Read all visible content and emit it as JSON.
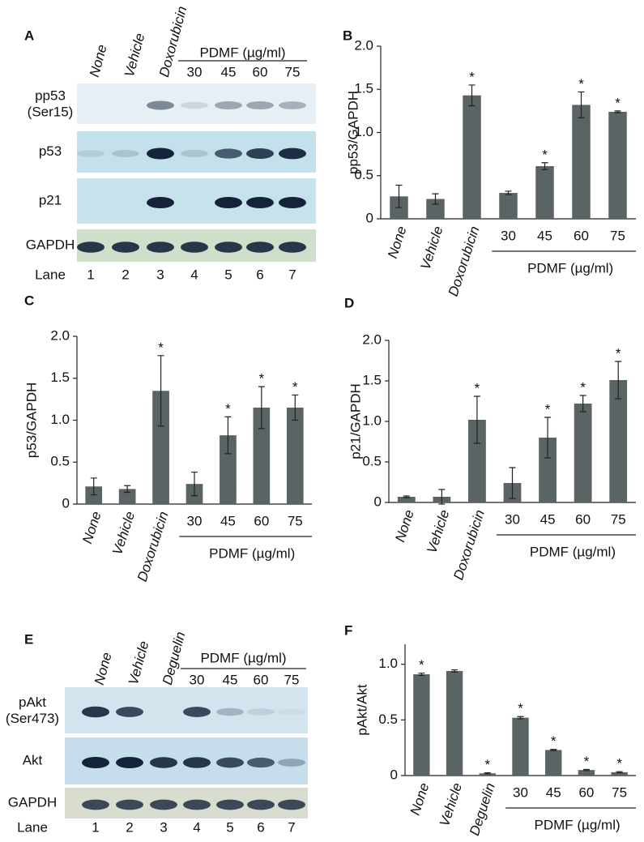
{
  "blots": [
    {
      "panel": "A",
      "treatments": [
        "None",
        "Vehicle",
        "Doxorubicin"
      ],
      "group": "PDMF (µg/ml)",
      "doses": [
        "30",
        "45",
        "60",
        "75"
      ],
      "rows": [
        {
          "name": "pp53",
          "site": "(Ser15)"
        },
        {
          "name": "p53"
        },
        {
          "name": "p21"
        },
        {
          "name": "GAPDH"
        }
      ],
      "lane_title": "Lane",
      "lanes": [
        1,
        2,
        3,
        4,
        5,
        6,
        7
      ]
    },
    {
      "panel": "E",
      "treatments": [
        "None",
        "Vehicle",
        "Deguelin"
      ],
      "group": "PDMF (µg/ml)",
      "doses": [
        "30",
        "45",
        "60",
        "75"
      ],
      "rows": [
        {
          "name": "pAkt",
          "site": "(Ser473)"
        },
        {
          "name": "Akt"
        },
        {
          "name": "GAPDH"
        }
      ],
      "lane_title": "Lane",
      "lanes": [
        1,
        2,
        3,
        4,
        5,
        6,
        7
      ]
    }
  ],
  "chart_data": [
    {
      "type": "bar",
      "panel": "B",
      "y_label": "pp53/GAPDH",
      "color": "#5b6464",
      "categories": [
        "None",
        "Vehicle",
        "Doxorubicin",
        "30",
        "45",
        "60",
        "75"
      ],
      "category_group": "PDMF (µg/ml)",
      "values": [
        0.26,
        0.23,
        1.43,
        0.3,
        0.61,
        1.32,
        1.24
      ],
      "errors": [
        0.13,
        0.06,
        0.12,
        0.02,
        0.04,
        0.15,
        0.01
      ],
      "annotations": [
        null,
        null,
        "*",
        null,
        "*",
        "*",
        "*"
      ],
      "ylim": [
        0,
        2
      ],
      "yticks": [
        0,
        0.5,
        {
          "value": 1,
          "label": "1.0"
        },
        1.5,
        {
          "value": 2,
          "label": "2.0"
        }
      ]
    },
    {
      "type": "bar",
      "panel": "C",
      "y_label": "p53/GAPDH",
      "color": "#5b6464",
      "categories": [
        "None",
        "Vehicle",
        "Doxorubicin",
        "30",
        "45",
        "60",
        "75"
      ],
      "category_group": "PDMF (µg/ml)",
      "values": [
        0.21,
        0.18,
        1.35,
        0.24,
        0.82,
        1.15,
        1.15
      ],
      "errors": [
        0.1,
        0.04,
        0.42,
        0.14,
        0.22,
        0.25,
        0.15
      ],
      "annotations": [
        null,
        null,
        "*",
        null,
        "*",
        "*",
        "*"
      ],
      "ylim": [
        0,
        2
      ],
      "yticks": [
        0,
        0.5,
        {
          "value": 1,
          "label": "1.0"
        },
        1.5,
        {
          "value": 2,
          "label": "2.0"
        }
      ]
    },
    {
      "type": "bar",
      "panel": "D",
      "y_label": "p21/GAPDH",
      "color": "#5b6464",
      "categories": [
        "None",
        "Vehicle",
        "Doxorubicin",
        "30",
        "45",
        "60",
        "75"
      ],
      "category_group": "PDMF (µg/ml)",
      "values": [
        0.07,
        0.07,
        1.02,
        0.24,
        0.8,
        1.22,
        1.51
      ],
      "errors": [
        0.01,
        0.09,
        0.29,
        0.19,
        0.25,
        0.1,
        0.23
      ],
      "annotations": [
        null,
        null,
        "*",
        null,
        "*",
        "*",
        "*"
      ],
      "ylim": [
        0,
        2
      ],
      "yticks": [
        0,
        0.5,
        {
          "value": 1,
          "label": "1.0"
        },
        1.5,
        {
          "value": 2,
          "label": "2.0"
        }
      ]
    },
    {
      "type": "bar",
      "panel": "F",
      "y_label": "pAkt/Akt",
      "color": "#5b6464",
      "categories": [
        "None",
        "Vehicle",
        "Deguelin",
        "30",
        "45",
        "60",
        "75"
      ],
      "category_group": "PDMF (µg/ml)",
      "values": [
        0.91,
        0.94,
        0.02,
        0.52,
        0.23,
        0.05,
        0.03
      ],
      "errors": [
        0.01,
        0.01,
        0.005,
        0.01,
        0.005,
        0.005,
        0.005
      ],
      "annotations": [
        "*",
        null,
        "*",
        "*",
        "*",
        "*",
        "*"
      ],
      "ylim": [
        0,
        1.18
      ],
      "yticks": [
        0,
        0.5,
        {
          "value": 1,
          "label": "1.0"
        }
      ]
    }
  ]
}
